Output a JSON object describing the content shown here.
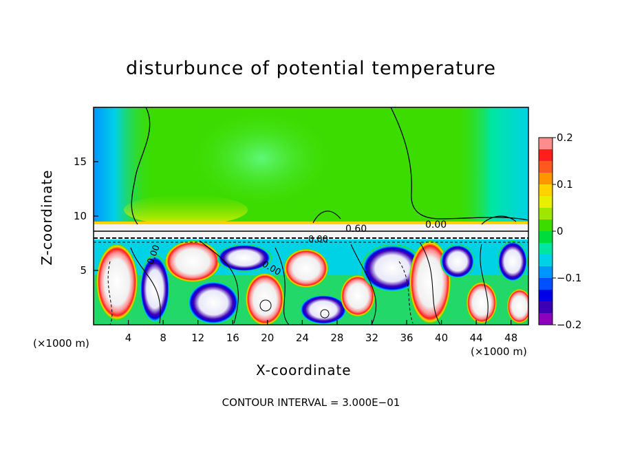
{
  "chart_data": {
    "type": "heatmap",
    "title": "disturbunce of potential temperature",
    "xlabel": "X-coordinate",
    "ylabel": "Z-coordinate",
    "x_unit": "(×1000 m)",
    "x_ticks": [
      4,
      8,
      12,
      16,
      20,
      24,
      28,
      32,
      36,
      40,
      44,
      48
    ],
    "y_ticks": [
      5,
      10,
      15
    ],
    "xlim": [
      0,
      50
    ],
    "ylim": [
      0,
      20
    ],
    "colorbar": {
      "ticks": [
        0.2,
        0.1,
        0,
        -0.1,
        -0.2
      ],
      "tick_labels": [
        "0.2",
        "0.1",
        "0",
        "−0.1",
        "−0.2"
      ],
      "range": [
        -0.2,
        0.2
      ],
      "colors": [
        "#ff8c8c",
        "#ff1e1e",
        "#ff5a1e",
        "#ff9600",
        "#ffd200",
        "#e6f000",
        "#a0e600",
        "#3cdc00",
        "#00dc3c",
        "#00e6a0",
        "#00d2e6",
        "#0096ff",
        "#0050ff",
        "#0000e6",
        "#3c00b4",
        "#8c00be"
      ]
    },
    "contour_labels": [
      "0.60",
      "0.00",
      "0.00",
      "0.00",
      "0.00"
    ],
    "contour_interval_text": "CONTOUR INTERVAL = 3.000E−01",
    "grid": false
  }
}
